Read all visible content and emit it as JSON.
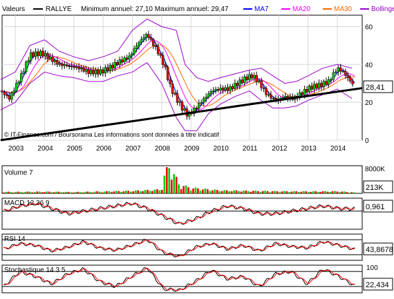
{
  "header": {
    "valeurs_label": "Valeurs",
    "symbol": "RALLYE",
    "stats": "Minimum annuel: 27,10 Maximum annuel: 29,47",
    "legend": [
      {
        "label": "MA7",
        "color": "#0000ff"
      },
      {
        "label": "MA20",
        "color": "#ff00ff"
      },
      {
        "label": "MA30",
        "color": "#ff6600"
      },
      {
        "label": "Bollinger",
        "color": "#9900cc"
      }
    ]
  },
  "chart_data": [
    {
      "type": "candlestick",
      "title": "",
      "copyright": "© IT-Finance.com / Boursorama Les informations sont données à titre indicatif",
      "x_years": [
        "2003",
        "2004",
        "2005",
        "2006",
        "2007",
        "2008",
        "2009",
        "2010",
        "2011",
        "2012",
        "2013",
        "2014"
      ],
      "y_ticks": [
        0,
        20,
        40,
        60
      ],
      "ylim": [
        0,
        66
      ],
      "last_value_label": "28,41",
      "last_value": 28.41,
      "price_series": [
        {
          "t": 2002.5,
          "v": 26
        },
        {
          "t": 2002.8,
          "v": 22
        },
        {
          "t": 2003.2,
          "v": 34
        },
        {
          "t": 2003.5,
          "v": 45
        },
        {
          "t": 2003.9,
          "v": 46
        },
        {
          "t": 2004.2,
          "v": 43
        },
        {
          "t": 2004.5,
          "v": 40
        },
        {
          "t": 2004.9,
          "v": 39
        },
        {
          "t": 2005.2,
          "v": 38
        },
        {
          "t": 2005.5,
          "v": 36
        },
        {
          "t": 2005.9,
          "v": 36
        },
        {
          "t": 2006.2,
          "v": 38
        },
        {
          "t": 2006.5,
          "v": 41
        },
        {
          "t": 2006.9,
          "v": 44
        },
        {
          "t": 2007.1,
          "v": 49
        },
        {
          "t": 2007.3,
          "v": 53
        },
        {
          "t": 2007.5,
          "v": 56
        },
        {
          "t": 2007.7,
          "v": 51
        },
        {
          "t": 2007.9,
          "v": 46
        },
        {
          "t": 2008.1,
          "v": 39
        },
        {
          "t": 2008.3,
          "v": 28
        },
        {
          "t": 2008.5,
          "v": 22
        },
        {
          "t": 2008.7,
          "v": 17
        },
        {
          "t": 2008.9,
          "v": 13
        },
        {
          "t": 2009.1,
          "v": 16
        },
        {
          "t": 2009.4,
          "v": 21
        },
        {
          "t": 2009.7,
          "v": 26
        },
        {
          "t": 2010.0,
          "v": 27
        },
        {
          "t": 2010.3,
          "v": 27
        },
        {
          "t": 2010.6,
          "v": 30
        },
        {
          "t": 2010.9,
          "v": 33
        },
        {
          "t": 2011.1,
          "v": 34
        },
        {
          "t": 2011.3,
          "v": 31
        },
        {
          "t": 2011.6,
          "v": 24
        },
        {
          "t": 2011.9,
          "v": 21
        },
        {
          "t": 2012.2,
          "v": 23
        },
        {
          "t": 2012.5,
          "v": 22
        },
        {
          "t": 2012.8,
          "v": 25
        },
        {
          "t": 2013.1,
          "v": 28
        },
        {
          "t": 2013.4,
          "v": 29
        },
        {
          "t": 2013.7,
          "v": 31
        },
        {
          "t": 2014.0,
          "v": 38
        },
        {
          "t": 2014.2,
          "v": 36
        },
        {
          "t": 2014.4,
          "v": 32
        },
        {
          "t": 2014.6,
          "v": 28.4
        }
      ],
      "bollinger_upper": [
        {
          "t": 2002.5,
          "v": 32
        },
        {
          "t": 2003.0,
          "v": 36
        },
        {
          "t": 2003.5,
          "v": 50
        },
        {
          "t": 2004.0,
          "v": 53
        },
        {
          "t": 2004.5,
          "v": 47
        },
        {
          "t": 2005.0,
          "v": 44
        },
        {
          "t": 2005.5,
          "v": 42
        },
        {
          "t": 2006.0,
          "v": 44
        },
        {
          "t": 2006.5,
          "v": 47
        },
        {
          "t": 2007.0,
          "v": 58
        },
        {
          "t": 2007.5,
          "v": 64
        },
        {
          "t": 2008.0,
          "v": 60
        },
        {
          "t": 2008.5,
          "v": 58
        },
        {
          "t": 2008.8,
          "v": 40
        },
        {
          "t": 2009.2,
          "v": 33
        },
        {
          "t": 2009.6,
          "v": 31
        },
        {
          "t": 2010.0,
          "v": 33
        },
        {
          "t": 2010.5,
          "v": 35
        },
        {
          "t": 2011.0,
          "v": 37
        },
        {
          "t": 2011.4,
          "v": 38
        },
        {
          "t": 2011.8,
          "v": 34
        },
        {
          "t": 2012.2,
          "v": 30
        },
        {
          "t": 2012.6,
          "v": 31
        },
        {
          "t": 2013.0,
          "v": 34
        },
        {
          "t": 2013.5,
          "v": 38
        },
        {
          "t": 2014.0,
          "v": 40
        },
        {
          "t": 2014.5,
          "v": 38
        }
      ],
      "bollinger_lower": [
        {
          "t": 2002.5,
          "v": 16
        },
        {
          "t": 2003.0,
          "v": 20
        },
        {
          "t": 2003.5,
          "v": 30
        },
        {
          "t": 2004.0,
          "v": 36
        },
        {
          "t": 2004.5,
          "v": 34
        },
        {
          "t": 2005.0,
          "v": 33
        },
        {
          "t": 2005.5,
          "v": 31
        },
        {
          "t": 2006.0,
          "v": 31
        },
        {
          "t": 2006.5,
          "v": 34
        },
        {
          "t": 2007.0,
          "v": 36
        },
        {
          "t": 2007.5,
          "v": 41
        },
        {
          "t": 2008.0,
          "v": 30
        },
        {
          "t": 2008.5,
          "v": 12
        },
        {
          "t": 2008.8,
          "v": 5
        },
        {
          "t": 2009.2,
          "v": 5
        },
        {
          "t": 2009.6,
          "v": 14
        },
        {
          "t": 2010.0,
          "v": 19
        },
        {
          "t": 2010.5,
          "v": 23
        },
        {
          "t": 2011.0,
          "v": 26
        },
        {
          "t": 2011.4,
          "v": 21
        },
        {
          "t": 2011.8,
          "v": 17
        },
        {
          "t": 2012.2,
          "v": 17
        },
        {
          "t": 2012.6,
          "v": 18
        },
        {
          "t": 2013.0,
          "v": 21
        },
        {
          "t": 2013.5,
          "v": 24
        },
        {
          "t": 2014.0,
          "v": 27
        },
        {
          "t": 2014.5,
          "v": 22
        }
      ],
      "trendline": [
        {
          "t": 2002.5,
          "v": 0
        },
        {
          "t": 2014.6,
          "v": 27.5
        }
      ]
    },
    {
      "type": "bar",
      "title": "Volume 7",
      "y_ticks": [
        "8000K"
      ],
      "last_value_label": "213K",
      "peak_label": "8000K",
      "volume_samples": [
        {
          "t": 2003.0,
          "v": 350
        },
        {
          "t": 2004.0,
          "v": 400
        },
        {
          "t": 2005.0,
          "v": 300
        },
        {
          "t": 2006.0,
          "v": 450
        },
        {
          "t": 2007.0,
          "v": 600
        },
        {
          "t": 2008.0,
          "v": 900
        },
        {
          "t": 2008.2,
          "v": 7600
        },
        {
          "t": 2008.6,
          "v": 2100
        },
        {
          "t": 2009.0,
          "v": 1300
        },
        {
          "t": 2010.0,
          "v": 700
        },
        {
          "t": 2011.0,
          "v": 600
        },
        {
          "t": 2012.0,
          "v": 500
        },
        {
          "t": 2013.0,
          "v": 450
        },
        {
          "t": 2014.0,
          "v": 500
        },
        {
          "t": 2014.6,
          "v": 213
        }
      ]
    },
    {
      "type": "line",
      "title": "MACD 12 26 9",
      "last_value_label": "0,961",
      "series": [
        {
          "name": "",
          "values": [
            0,
            2,
            3,
            1,
            -1,
            0,
            1,
            2,
            3,
            1,
            -2,
            -5,
            -3,
            0,
            2,
            1,
            -1,
            -1,
            0,
            1,
            2,
            1,
            0.9
          ]
        }
      ]
    },
    {
      "type": "line",
      "title": "RSI 14",
      "last_value_label": "43,8678",
      "series": [
        {
          "name": "",
          "values": [
            45,
            60,
            55,
            40,
            50,
            65,
            48,
            42,
            55,
            70,
            35,
            25,
            50,
            60,
            45,
            55,
            40,
            60,
            52,
            48,
            65,
            55,
            44
          ]
        }
      ]
    },
    {
      "type": "line",
      "title": "Stochastique 14 3 5",
      "y_ticks": [
        100
      ],
      "last_value_label": "22,434",
      "series": [
        {
          "name": "",
          "values": [
            20,
            80,
            60,
            30,
            70,
            90,
            40,
            20,
            60,
            95,
            10,
            5,
            40,
            85,
            50,
            60,
            20,
            70,
            80,
            30,
            90,
            60,
            22
          ]
        }
      ]
    }
  ]
}
